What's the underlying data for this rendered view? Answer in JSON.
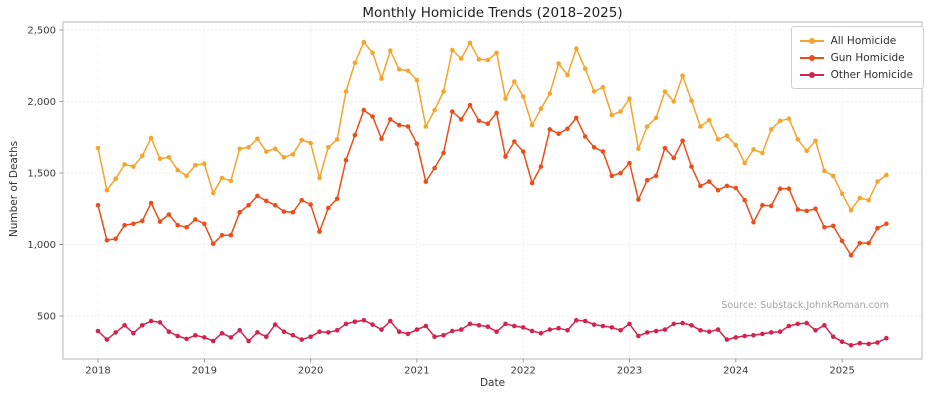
{
  "chart": {
    "title": "Monthly Homicide Trends (2018–2025)",
    "xlabel": "Date",
    "ylabel": "Number of Deaths",
    "source": "Source: Substack.JohnkRoman.com",
    "legend_position": "top-right",
    "grid": "on"
  },
  "chart_data": {
    "type": "line",
    "title": "Monthly Homicide Trends (2018–2025)",
    "xlabel": "Date",
    "ylabel": "Number of Deaths",
    "x_unit": "month",
    "x_start": "2018-01",
    "x_end": "2025-06",
    "months": 90,
    "ylim": [
      200,
      2550
    ],
    "ytick_values": [
      500,
      1000,
      1500,
      2000,
      2500
    ],
    "ytick_labels": [
      "500",
      "1,000",
      "1,500",
      "2,000",
      "2,500"
    ],
    "xtick_month_index": [
      0,
      12,
      24,
      36,
      48,
      60,
      72,
      84
    ],
    "xtick_labels": [
      "2018",
      "2019",
      "2020",
      "2021",
      "2022",
      "2023",
      "2024",
      "2025"
    ],
    "series": [
      {
        "name": "All Homicide",
        "color": "#F5A42C",
        "values": [
          1675,
          1380,
          1460,
          1560,
          1545,
          1620,
          1745,
          1600,
          1610,
          1520,
          1480,
          1555,
          1565,
          1360,
          1465,
          1445,
          1670,
          1680,
          1740,
          1650,
          1670,
          1610,
          1630,
          1730,
          1710,
          1465,
          1680,
          1735,
          2070,
          2270,
          2415,
          2340,
          2160,
          2355,
          2225,
          2215,
          2150,
          1825,
          1940,
          2070,
          2360,
          2300,
          2410,
          2295,
          2290,
          2340,
          2020,
          2140,
          2035,
          1835,
          1950,
          2055,
          2265,
          2185,
          2370,
          2230,
          2070,
          2100,
          1905,
          1930,
          2020,
          1670,
          1825,
          1885,
          2070,
          2000,
          2180,
          2005,
          1825,
          1870,
          1735,
          1760,
          1695,
          1570,
          1665,
          1640,
          1805,
          1865,
          1880,
          1735,
          1655,
          1725,
          1515,
          1480,
          1355,
          1240,
          1325,
          1310,
          1440,
          1485
        ]
      },
      {
        "name": "Gun Homicide",
        "color": "#EA4E1B",
        "values": [
          1275,
          1030,
          1040,
          1135,
          1145,
          1165,
          1290,
          1160,
          1210,
          1135,
          1120,
          1175,
          1145,
          1005,
          1065,
          1065,
          1225,
          1275,
          1340,
          1305,
          1275,
          1230,
          1225,
          1310,
          1280,
          1090,
          1255,
          1320,
          1590,
          1765,
          1940,
          1895,
          1740,
          1875,
          1835,
          1825,
          1705,
          1440,
          1535,
          1640,
          1930,
          1875,
          1975,
          1865,
          1845,
          1920,
          1615,
          1720,
          1650,
          1430,
          1545,
          1805,
          1775,
          1810,
          1885,
          1755,
          1680,
          1650,
          1480,
          1500,
          1570,
          1315,
          1450,
          1480,
          1675,
          1605,
          1725,
          1545,
          1410,
          1440,
          1380,
          1410,
          1395,
          1310,
          1155,
          1275,
          1270,
          1390,
          1390,
          1245,
          1235,
          1250,
          1120,
          1130,
          1025,
          925,
          1010,
          1010,
          1115,
          1145
        ]
      },
      {
        "name": "Other Homicide",
        "color": "#D2234E",
        "values": [
          395,
          335,
          385,
          435,
          380,
          435,
          465,
          455,
          390,
          360,
          340,
          365,
          350,
          325,
          380,
          350,
          400,
          325,
          385,
          355,
          440,
          390,
          365,
          335,
          355,
          390,
          385,
          400,
          445,
          460,
          470,
          440,
          405,
          465,
          390,
          375,
          405,
          430,
          355,
          365,
          395,
          405,
          445,
          435,
          425,
          390,
          445,
          430,
          420,
          395,
          380,
          405,
          415,
          400,
          470,
          465,
          440,
          430,
          420,
          400,
          445,
          360,
          385,
          395,
          405,
          445,
          450,
          435,
          400,
          390,
          405,
          335,
          350,
          360,
          365,
          375,
          385,
          390,
          430,
          445,
          450,
          400,
          435,
          355,
          320,
          295,
          310,
          305,
          315,
          345
        ]
      }
    ]
  },
  "style": {
    "grid_color": "#e7e7e7",
    "spine_color": "#b9b9b9",
    "tick_color": "#8a8a8a",
    "tick_label_color": "#3c3c3c"
  }
}
